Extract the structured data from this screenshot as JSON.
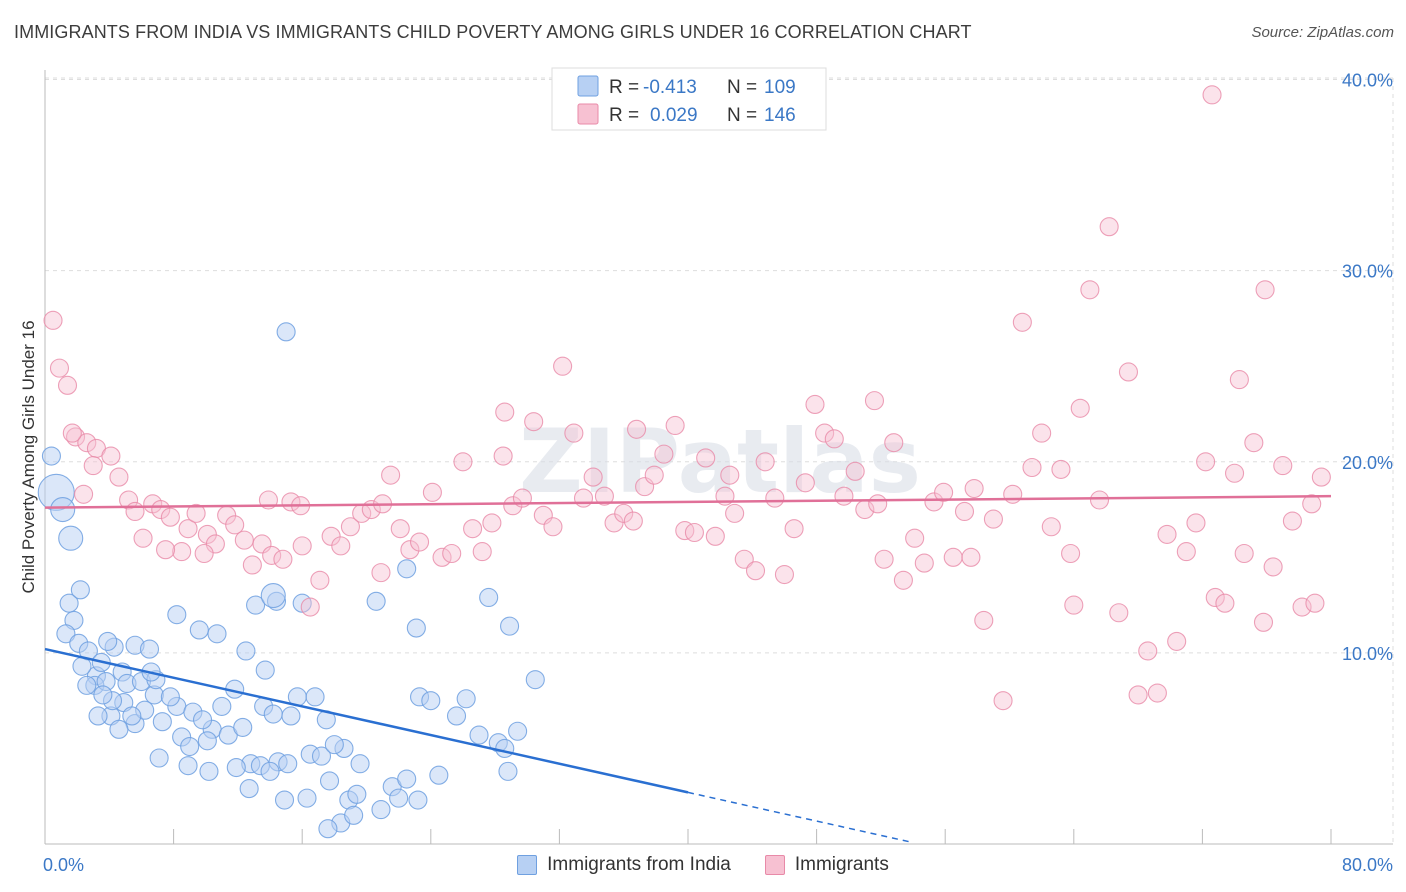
{
  "title": "IMMIGRANTS FROM INDIA VS IMMIGRANTS CHILD POVERTY AMONG GIRLS UNDER 16 CORRELATION CHART",
  "source": "Source: ZipAtlas.com",
  "watermark": "ZIPatlas",
  "colors": {
    "blue": "#6fa0e0",
    "blue_fill": "#b7d0f3",
    "blue_line": "#2a6fd1",
    "pink": "#e88aa8",
    "pink_fill": "#f7c1d2",
    "pink_line": "#e07098",
    "axis_label": "#3b78c6",
    "grid": "#dddddd"
  },
  "legend": {
    "rows": [
      {
        "r_label": "R =",
        "r_value": "-0.413",
        "n_label": "N =",
        "n_value": "109"
      },
      {
        "r_label": "R =",
        "r_value": "0.029",
        "n_label": "N =",
        "n_value": "146"
      }
    ]
  },
  "chart_data": {
    "type": "scatter",
    "title": "IMMIGRANTS FROM INDIA VS IMMIGRANTS CHILD POVERTY AMONG GIRLS UNDER 16 CORRELATION CHART",
    "xlabel": "",
    "ylabel": "Child Poverty Among Girls Under 16",
    "xlim": [
      0,
      80
    ],
    "ylim": [
      0,
      40.5
    ],
    "x_tick_labels": [
      "0.0%",
      "80.0%"
    ],
    "y_ticks": [
      10,
      20,
      30,
      40
    ],
    "y_tick_labels": [
      "10.0%",
      "20.0%",
      "30.0%",
      "40.0%"
    ],
    "grid": true,
    "legend_position": "top-center",
    "series": [
      {
        "name": "Immigrants from India",
        "color": "#6fa0e0",
        "trend": {
          "x0": 0,
          "y0": 10.2,
          "x1": 40,
          "y1": 2.7,
          "dash_to_x": 54
        },
        "points": [
          [
            1.5,
            12.6
          ],
          [
            1.8,
            11.7
          ],
          [
            2.2,
            13.3
          ],
          [
            1.3,
            11.0
          ],
          [
            2.1,
            10.5
          ],
          [
            2.7,
            10.1
          ],
          [
            3.2,
            8.8
          ],
          [
            3.5,
            9.5
          ],
          [
            4.3,
            10.3
          ],
          [
            4.8,
            9.0
          ],
          [
            5.1,
            8.4
          ],
          [
            6.0,
            8.5
          ],
          [
            6.8,
            7.8
          ],
          [
            2.3,
            9.3
          ],
          [
            3.1,
            8.3
          ],
          [
            3.8,
            8.5
          ],
          [
            4.1,
            6.7
          ],
          [
            4.9,
            7.4
          ],
          [
            5.6,
            6.3
          ],
          [
            6.2,
            7.0
          ],
          [
            7.3,
            6.4
          ],
          [
            8.2,
            7.2
          ],
          [
            9.2,
            6.9
          ],
          [
            10.4,
            6.0
          ],
          [
            11.0,
            7.2
          ],
          [
            11.8,
            8.1
          ],
          [
            13.6,
            7.2
          ],
          [
            14.2,
            6.8
          ],
          [
            15.7,
            7.7
          ],
          [
            2.6,
            8.3
          ],
          [
            3.3,
            6.7
          ],
          [
            3.9,
            10.6
          ],
          [
            4.2,
            7.5
          ],
          [
            5.4,
            6.7
          ],
          [
            6.9,
            8.6
          ],
          [
            7.8,
            7.7
          ],
          [
            8.5,
            5.6
          ],
          [
            9.0,
            5.1
          ],
          [
            10.1,
            5.4
          ],
          [
            11.4,
            5.7
          ],
          [
            12.8,
            4.2
          ],
          [
            13.4,
            4.1
          ],
          [
            14.5,
            4.3
          ],
          [
            15.1,
            4.2
          ],
          [
            16.5,
            4.7
          ],
          [
            17.2,
            4.6
          ],
          [
            18.6,
            5.0
          ],
          [
            19.6,
            4.2
          ],
          [
            7.1,
            4.5
          ],
          [
            8.9,
            4.1
          ],
          [
            10.2,
            3.8
          ],
          [
            11.9,
            4.0
          ],
          [
            12.7,
            2.9
          ],
          [
            14.0,
            3.8
          ],
          [
            14.9,
            2.3
          ],
          [
            16.3,
            2.4
          ],
          [
            17.7,
            3.3
          ],
          [
            18.9,
            2.3
          ],
          [
            19.4,
            2.6
          ],
          [
            21.6,
            3.0
          ],
          [
            22.0,
            2.4
          ],
          [
            23.3,
            7.7
          ],
          [
            24.0,
            7.5
          ],
          [
            25.6,
            6.7
          ],
          [
            26.2,
            7.6
          ],
          [
            27.0,
            5.7
          ],
          [
            28.2,
            5.3
          ],
          [
            28.6,
            5.0
          ],
          [
            29.4,
            5.9
          ],
          [
            30.5,
            8.6
          ],
          [
            18.4,
            1.1
          ],
          [
            17.6,
            0.8
          ],
          [
            20.9,
            1.8
          ],
          [
            19.2,
            1.5
          ],
          [
            28.8,
            3.8
          ],
          [
            22.5,
            3.4
          ],
          [
            23.2,
            2.3
          ],
          [
            24.5,
            3.6
          ],
          [
            5.6,
            10.4
          ],
          [
            6.5,
            10.2
          ],
          [
            8.2,
            12.0
          ],
          [
            9.6,
            11.2
          ],
          [
            10.7,
            11.0
          ],
          [
            12.5,
            10.1
          ],
          [
            13.1,
            12.5
          ],
          [
            14.4,
            12.7
          ],
          [
            16.0,
            12.6
          ],
          [
            20.6,
            12.7
          ],
          [
            22.5,
            14.4
          ],
          [
            23.1,
            11.3
          ],
          [
            27.6,
            12.9
          ],
          [
            28.9,
            11.4
          ],
          [
            15.0,
            26.8
          ],
          [
            0.4,
            20.3
          ],
          [
            0.7,
            18.4
          ],
          [
            1.1,
            17.5
          ],
          [
            1.6,
            16.0
          ],
          [
            14.2,
            13.0
          ],
          [
            16.8,
            7.7
          ],
          [
            17.5,
            6.5
          ],
          [
            18.0,
            5.2
          ],
          [
            12.3,
            6.1
          ],
          [
            9.8,
            6.5
          ],
          [
            13.7,
            9.1
          ],
          [
            15.3,
            6.7
          ],
          [
            3.6,
            7.8
          ],
          [
            6.6,
            9.0
          ],
          [
            4.6,
            6.0
          ]
        ]
      },
      {
        "name": "Immigrants",
        "color": "#e88aa8",
        "trend": {
          "x0": 0,
          "y0": 17.6,
          "x1": 80,
          "y1": 18.2
        },
        "points": [
          [
            0.5,
            27.4
          ],
          [
            0.9,
            24.9
          ],
          [
            1.4,
            24.0
          ],
          [
            1.9,
            21.3
          ],
          [
            2.6,
            21.0
          ],
          [
            3.2,
            20.7
          ],
          [
            4.1,
            20.3
          ],
          [
            4.6,
            19.2
          ],
          [
            5.2,
            18.0
          ],
          [
            5.6,
            17.4
          ],
          [
            6.1,
            16.0
          ],
          [
            6.7,
            17.8
          ],
          [
            7.2,
            17.5
          ],
          [
            7.8,
            17.1
          ],
          [
            8.5,
            15.3
          ],
          [
            8.9,
            16.5
          ],
          [
            9.4,
            17.3
          ],
          [
            10.1,
            16.2
          ],
          [
            10.6,
            15.7
          ],
          [
            11.3,
            17.2
          ],
          [
            11.8,
            16.7
          ],
          [
            12.4,
            15.9
          ],
          [
            12.9,
            14.6
          ],
          [
            13.5,
            15.7
          ],
          [
            14.1,
            15.1
          ],
          [
            14.8,
            14.9
          ],
          [
            15.3,
            17.9
          ],
          [
            15.9,
            17.7
          ],
          [
            16.5,
            12.4
          ],
          [
            17.1,
            13.8
          ],
          [
            17.8,
            16.1
          ],
          [
            18.4,
            15.6
          ],
          [
            19.0,
            16.6
          ],
          [
            19.7,
            17.3
          ],
          [
            20.3,
            17.5
          ],
          [
            20.9,
            14.2
          ],
          [
            21.5,
            19.3
          ],
          [
            22.1,
            16.5
          ],
          [
            22.7,
            15.4
          ],
          [
            23.3,
            15.8
          ],
          [
            24.1,
            18.4
          ],
          [
            24.7,
            15.0
          ],
          [
            25.3,
            15.2
          ],
          [
            26.0,
            20.0
          ],
          [
            26.6,
            16.5
          ],
          [
            27.2,
            15.3
          ],
          [
            27.8,
            16.8
          ],
          [
            28.5,
            20.3
          ],
          [
            29.1,
            17.7
          ],
          [
            29.7,
            18.1
          ],
          [
            30.4,
            22.1
          ],
          [
            31.0,
            17.2
          ],
          [
            31.6,
            16.6
          ],
          [
            32.2,
            25.0
          ],
          [
            32.9,
            21.5
          ],
          [
            33.5,
            18.1
          ],
          [
            34.1,
            19.2
          ],
          [
            34.8,
            18.2
          ],
          [
            35.4,
            16.8
          ],
          [
            36.0,
            17.3
          ],
          [
            36.6,
            16.9
          ],
          [
            37.3,
            18.7
          ],
          [
            37.9,
            19.3
          ],
          [
            38.5,
            20.4
          ],
          [
            39.2,
            21.9
          ],
          [
            39.8,
            16.4
          ],
          [
            40.4,
            16.3
          ],
          [
            41.1,
            20.2
          ],
          [
            41.7,
            16.1
          ],
          [
            42.3,
            18.2
          ],
          [
            42.9,
            17.3
          ],
          [
            43.5,
            14.9
          ],
          [
            44.2,
            14.3
          ],
          [
            44.8,
            20.0
          ],
          [
            45.4,
            18.1
          ],
          [
            46.0,
            14.1
          ],
          [
            46.6,
            16.5
          ],
          [
            47.3,
            18.9
          ],
          [
            47.9,
            23.0
          ],
          [
            48.5,
            21.5
          ],
          [
            49.1,
            21.2
          ],
          [
            49.7,
            18.2
          ],
          [
            50.4,
            19.5
          ],
          [
            51.0,
            17.5
          ],
          [
            51.6,
            23.2
          ],
          [
            52.2,
            14.9
          ],
          [
            52.8,
            21.0
          ],
          [
            53.4,
            13.8
          ],
          [
            54.1,
            16.0
          ],
          [
            54.7,
            14.7
          ],
          [
            55.3,
            17.9
          ],
          [
            55.9,
            18.4
          ],
          [
            56.5,
            15.0
          ],
          [
            57.2,
            17.4
          ],
          [
            57.8,
            18.6
          ],
          [
            58.4,
            11.7
          ],
          [
            59.0,
            17.0
          ],
          [
            59.6,
            7.5
          ],
          [
            60.2,
            18.3
          ],
          [
            60.8,
            27.3
          ],
          [
            61.4,
            19.7
          ],
          [
            62.0,
            21.5
          ],
          [
            62.6,
            16.6
          ],
          [
            63.2,
            19.6
          ],
          [
            63.8,
            15.2
          ],
          [
            64.4,
            22.8
          ],
          [
            65.0,
            29.0
          ],
          [
            65.6,
            18.0
          ],
          [
            66.2,
            32.3
          ],
          [
            66.8,
            12.1
          ],
          [
            67.4,
            24.7
          ],
          [
            68.0,
            7.8
          ],
          [
            68.6,
            10.1
          ],
          [
            69.2,
            7.9
          ],
          [
            69.8,
            16.2
          ],
          [
            70.4,
            10.6
          ],
          [
            71.0,
            15.3
          ],
          [
            71.6,
            16.8
          ],
          [
            72.2,
            20.0
          ],
          [
            72.8,
            12.9
          ],
          [
            73.4,
            12.6
          ],
          [
            74.0,
            19.4
          ],
          [
            74.6,
            15.2
          ],
          [
            75.2,
            21.0
          ],
          [
            75.8,
            11.6
          ],
          [
            76.4,
            14.5
          ],
          [
            77.0,
            19.8
          ],
          [
            77.6,
            16.9
          ],
          [
            78.2,
            12.4
          ],
          [
            78.8,
            17.8
          ],
          [
            79.4,
            19.2
          ],
          [
            1.7,
            21.5
          ],
          [
            2.4,
            18.3
          ],
          [
            3.0,
            19.8
          ],
          [
            7.5,
            15.4
          ],
          [
            9.9,
            15.2
          ],
          [
            13.9,
            18.0
          ],
          [
            16.0,
            15.6
          ],
          [
            28.6,
            22.6
          ],
          [
            36.8,
            21.7
          ],
          [
            42.6,
            19.3
          ],
          [
            51.8,
            17.8
          ],
          [
            57.6,
            15.0
          ],
          [
            64.0,
            12.5
          ],
          [
            75.9,
            29.0
          ],
          [
            74.3,
            24.3
          ],
          [
            72.6,
            39.2
          ],
          [
            79.0,
            12.6
          ],
          [
            21.0,
            17.8
          ]
        ]
      }
    ]
  }
}
